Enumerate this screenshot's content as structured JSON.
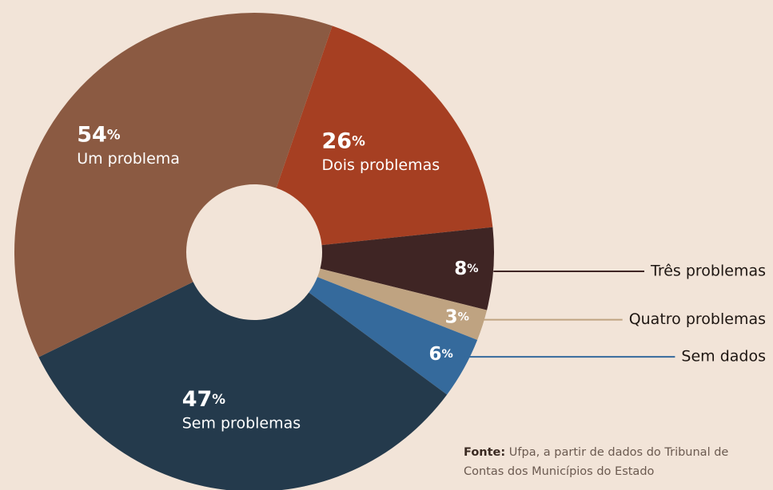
{
  "chart_data": {
    "type": "donut",
    "categories": [
      "Dois problemas",
      "Três problemas",
      "Quatro problemas",
      "Sem dados",
      "Sem problemas",
      "Um problema"
    ],
    "values": [
      26,
      8,
      3,
      6,
      47,
      54
    ],
    "value_labels": [
      "26%",
      "8%",
      "3%",
      "6%",
      "47%",
      "54%"
    ],
    "colors": [
      "#a63f22",
      "#3f2524",
      "#bfa381",
      "#356a9c",
      "#243a4c",
      "#8b5a42"
    ],
    "source": {
      "label": "Fonte:",
      "lines": [
        "Ufpa, a partir de dados do Tribunal de",
        "Contas dos Municípios do Estado"
      ]
    }
  }
}
